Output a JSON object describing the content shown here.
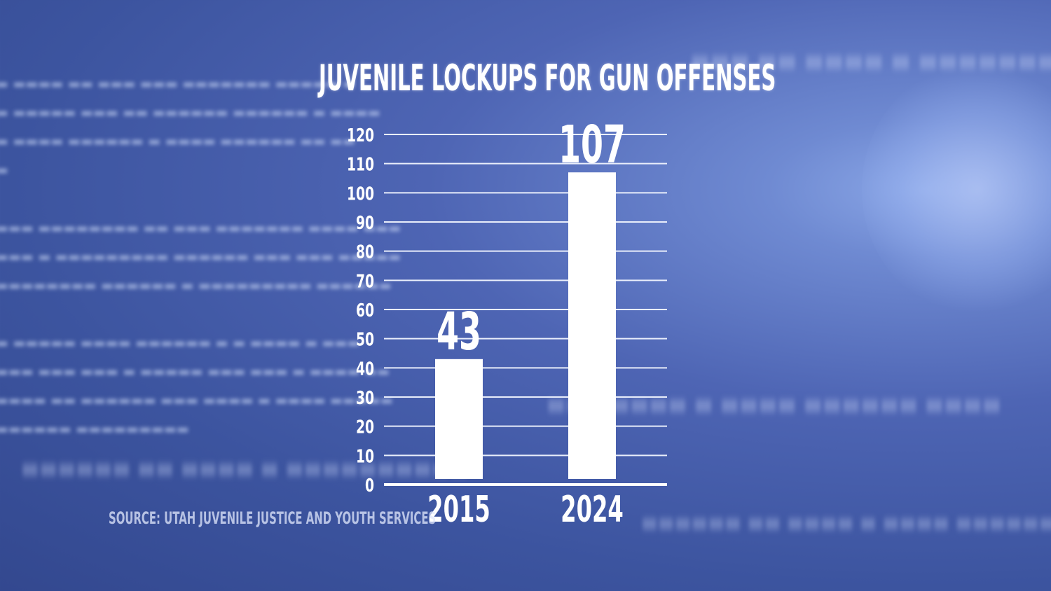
{
  "colors": {
    "bar": "#ffffff",
    "grid": "#e9eefb",
    "background": "#4258a5"
  },
  "chart_data": {
    "type": "bar",
    "title": "JUVENILE LOCKUPS FOR GUN OFFENSES",
    "categories": [
      "2015",
      "2024"
    ],
    "values": [
      43,
      107
    ],
    "data_labels": [
      "43",
      "107"
    ],
    "xlabel": "",
    "ylabel": "",
    "ylim": [
      0,
      120
    ],
    "yticks": [
      0,
      10,
      20,
      30,
      40,
      50,
      60,
      70,
      80,
      90,
      100,
      110,
      120
    ],
    "grid": true,
    "legend": "none",
    "source": "SOURCE:  UTAH JUVENILE JUSTICE AND YOUTH SERVICES"
  }
}
